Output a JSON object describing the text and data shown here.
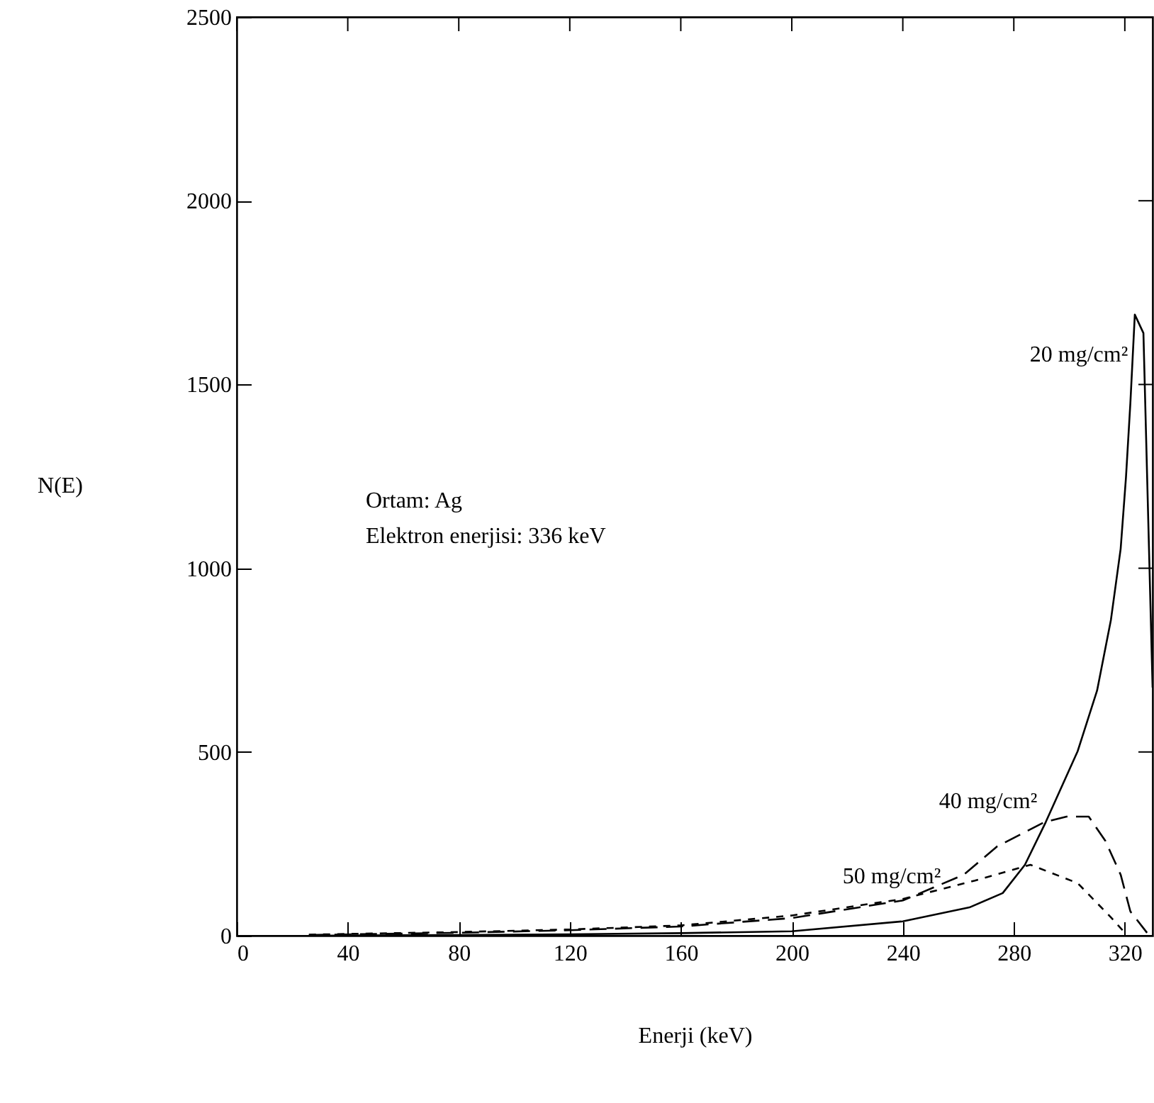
{
  "chart_data": {
    "type": "line",
    "xlabel": "Enerji (keV)",
    "ylabel": "N(E)",
    "x": [
      26,
      80,
      120,
      160,
      200,
      240,
      264,
      276,
      284,
      291.5,
      303,
      310,
      315,
      318.5,
      320.4,
      322,
      323.6,
      326.7,
      330
    ],
    "series": [
      {
        "name": "20 mg/cm²",
        "color": "#000000",
        "line_style": "solid",
        "values": [
          0,
          2,
          4,
          7,
          12,
          39,
          77,
          116,
          193,
          309,
          502,
          667,
          860,
          1053,
          1246,
          1450,
          1690,
          1640,
          675
        ]
      },
      {
        "name": "40 mg/cm²",
        "color": "#000000",
        "line_style": "dashed",
        "x": [
          26,
          80,
          120,
          160,
          200,
          240,
          262,
          274,
          291,
          299,
          307,
          313,
          318.5,
          322,
          328
        ],
        "values": [
          2,
          8,
          15,
          25,
          48,
          96,
          166,
          243,
          309,
          324,
          324,
          258,
          166,
          66,
          8
        ]
      },
      {
        "name": "50 mg/cm²",
        "color": "#000000",
        "line_style": "dotted",
        "x": [
          26,
          80,
          120,
          160,
          200,
          240,
          266,
          286,
          303,
          315,
          320
        ],
        "values": [
          3,
          10,
          17,
          28,
          55,
          100,
          150,
          193,
          143,
          50,
          8
        ]
      }
    ],
    "xlim": [
      0,
      330
    ],
    "xticks": [
      0,
      40,
      80,
      120,
      160,
      200,
      240,
      280,
      320
    ],
    "ylim": [
      0,
      2500
    ],
    "yticks": [
      0,
      500,
      1000,
      1500,
      2000,
      2500
    ],
    "grid": false,
    "annotations": [
      "Ortam: Ag",
      "Elektron enerjisi: 336 keV"
    ]
  }
}
